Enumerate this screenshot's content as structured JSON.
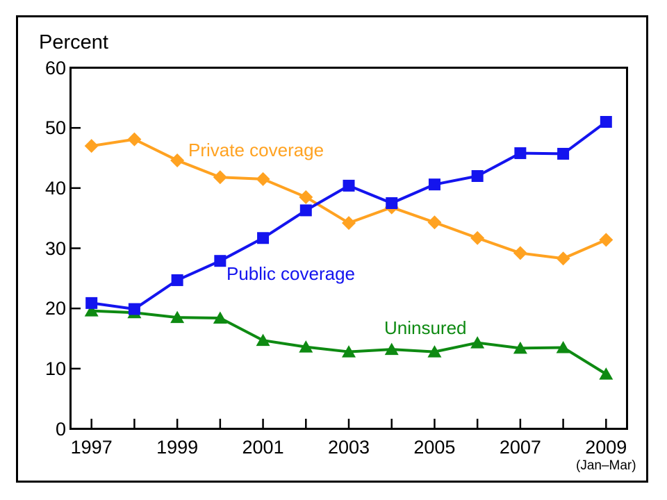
{
  "axes": {
    "y": {
      "title": "Percent",
      "ticks": [
        0,
        10,
        20,
        30,
        40,
        50,
        60
      ]
    },
    "x": {
      "tick_years": [
        1997,
        1998,
        1999,
        2000,
        2001,
        2002,
        2003,
        2004,
        2005,
        2006,
        2007,
        2008,
        2009
      ],
      "labels": [
        "1997",
        "1999",
        "2001",
        "2003",
        "2005",
        "2007",
        "2009"
      ],
      "sub_label": "(Jan–Mar)",
      "sub_label_year": 2009
    }
  },
  "chart_data": {
    "type": "line",
    "title": "",
    "xlabel": "",
    "ylabel": "Percent",
    "ylim": [
      0,
      60
    ],
    "grid": false,
    "legend_position": "inline-labels",
    "x": [
      1997,
      1998,
      1999,
      2000,
      2001,
      2002,
      2003,
      2004,
      2005,
      2006,
      2007,
      2008,
      2009
    ],
    "series": [
      {
        "name": "Private coverage",
        "marker": "diamond",
        "color": "#FFA221",
        "values": [
          47.0,
          48.1,
          44.6,
          41.8,
          41.5,
          38.5,
          34.2,
          36.8,
          34.3,
          31.7,
          29.2,
          28.3,
          31.4
        ]
      },
      {
        "name": "Public coverage",
        "marker": "square",
        "color": "#1414EE",
        "values": [
          20.9,
          19.9,
          24.7,
          27.9,
          31.7,
          36.3,
          40.4,
          37.5,
          40.6,
          42.0,
          45.8,
          45.7,
          51.0
        ]
      },
      {
        "name": "Uninsured",
        "marker": "triangle",
        "color": "#0E8A12",
        "values": [
          19.6,
          19.3,
          18.5,
          18.4,
          14.7,
          13.6,
          12.8,
          13.2,
          12.8,
          14.3,
          13.4,
          13.5,
          9.1
        ]
      }
    ],
    "draw_order": [
      0,
      2,
      1
    ],
    "axis_color": "#000000",
    "background_color": "#FFFFFF"
  }
}
